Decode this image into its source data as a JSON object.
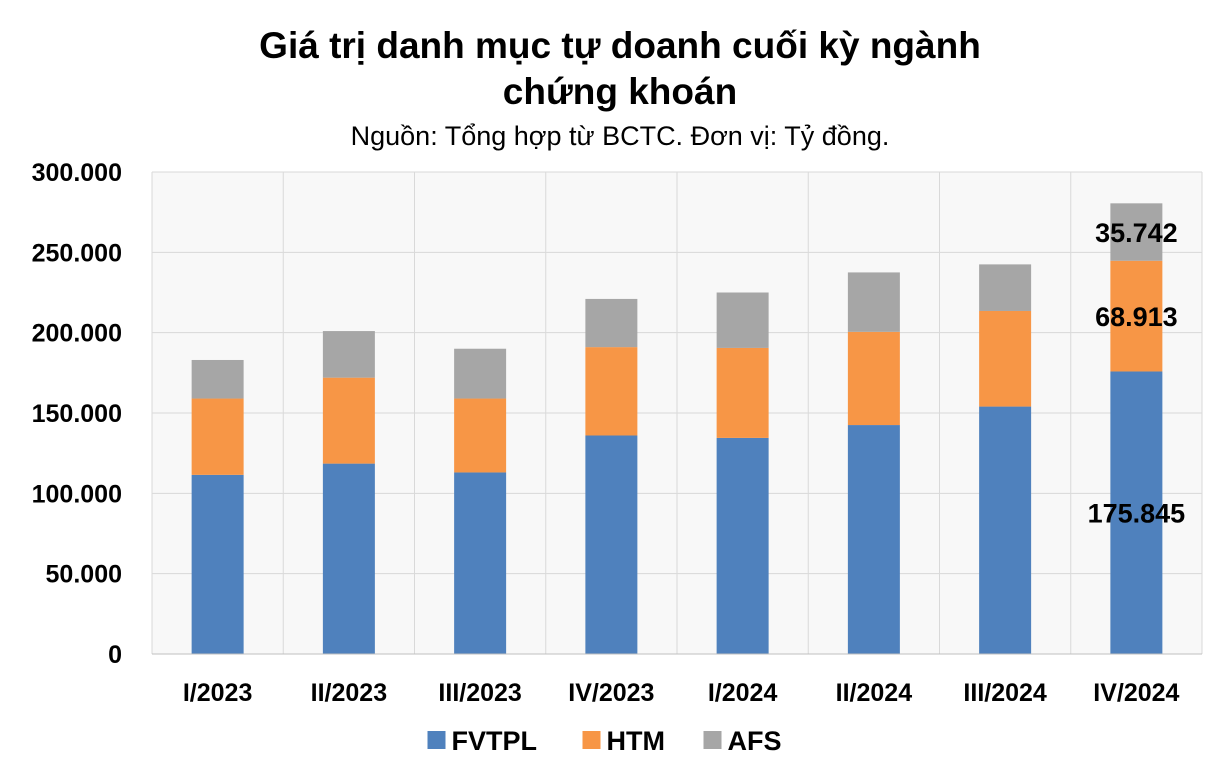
{
  "chart_data": {
    "type": "bar",
    "stacked": true,
    "title_lines": [
      "Giá trị danh mục tự doanh cuối kỳ ngành",
      "chứng khoán"
    ],
    "subtitle": "Nguồn: Tổng hợp từ BCTC. Đơn vị: Tỷ đồng.",
    "categories": [
      "I/2023",
      "II/2023",
      "III/2023",
      "IV/2023",
      "I/2024",
      "II/2024",
      "III/2024",
      "IV/2024"
    ],
    "series": [
      {
        "name": "FVTPL",
        "color": "#4f81bd",
        "values": [
          111500,
          118500,
          113000,
          136000,
          134500,
          142500,
          154000,
          175845
        ]
      },
      {
        "name": "HTM",
        "color": "#f79646",
        "values": [
          47500,
          53500,
          46000,
          55000,
          56000,
          58000,
          59500,
          68913
        ]
      },
      {
        "name": "AFS",
        "color": "#a6a6a6",
        "values": [
          24000,
          29000,
          31000,
          30000,
          34500,
          37000,
          29000,
          35742
        ]
      }
    ],
    "ylim": [
      0,
      300000
    ],
    "y_ticks": [
      0,
      50000,
      100000,
      150000,
      200000,
      250000,
      300000
    ],
    "y_tick_labels": [
      "0",
      "50.000",
      "100.000",
      "150.000",
      "200.000",
      "250.000",
      "300.000"
    ],
    "data_labels": [
      {
        "category_index": 7,
        "series_index": 0,
        "text": "175.845"
      },
      {
        "category_index": 7,
        "series_index": 1,
        "text": "68.913"
      },
      {
        "category_index": 7,
        "series_index": 2,
        "text": "35.742"
      }
    ],
    "grid": true,
    "legend_position": "bottom"
  }
}
